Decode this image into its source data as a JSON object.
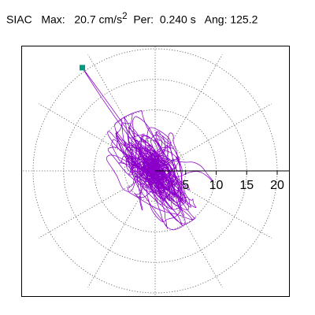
{
  "header": {
    "station": "SIAC",
    "max_label": "Max:",
    "max_value": "20.7",
    "max_unit": "cm/s",
    "max_unit_exp": "2",
    "period_label": "Per:",
    "period_value": "0.240 s",
    "angle_label": "Ang:",
    "angle_value": "125.2"
  },
  "chart_data": {
    "type": "polar-trace",
    "grid": true,
    "rings": [
      5,
      10,
      15,
      20
    ],
    "radial_range": [
      0,
      22
    ],
    "spokes_deg": [
      0,
      30,
      60,
      90,
      120,
      150,
      180,
      210,
      240,
      270,
      300,
      330
    ],
    "tick_labels": [
      "5",
      "10",
      "15",
      "20"
    ],
    "trace_color": "#8b00c8",
    "grid_color": "#555555",
    "max_marker": {
      "color": "#009a80",
      "radius": 20.7,
      "angle_deg": 125.2
    }
  }
}
